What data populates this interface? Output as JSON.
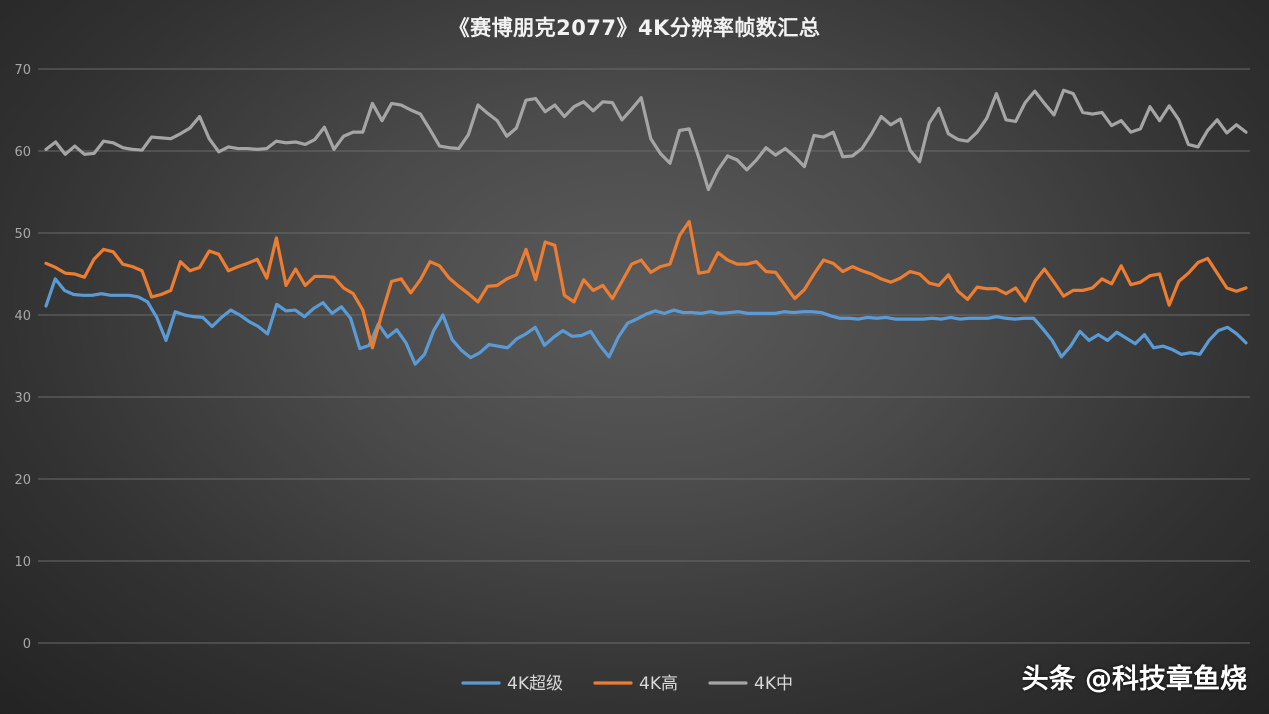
{
  "watermark": "头条 @科技章鱼烧",
  "chart_data": {
    "type": "line",
    "title": "《赛博朋克2077》4K分辨率帧数汇总",
    "xlabel": "",
    "ylabel": "",
    "ylim": [
      0,
      70
    ],
    "yticks": [
      0,
      10,
      20,
      30,
      40,
      50,
      60,
      70
    ],
    "grid": true,
    "legend_position": "bottom",
    "series": [
      {
        "name": "4K超级",
        "color": "#5b9bd5",
        "values": [
          41.1,
          44.4,
          43.0,
          42.5,
          42.4,
          42.4,
          42.6,
          42.4,
          42.4,
          42.4,
          42.2,
          41.6,
          39.7,
          36.9,
          40.4,
          40.0,
          39.8,
          39.7,
          38.6,
          39.7,
          40.6,
          40.0,
          39.2,
          38.6,
          37.7,
          41.3,
          40.5,
          40.6,
          39.8,
          40.8,
          41.5,
          40.2,
          41.0,
          39.6,
          35.9,
          36.3,
          38.9,
          37.3,
          38.2,
          36.6,
          34.0,
          35.2,
          38.1,
          40.0,
          37.0,
          35.7,
          34.8,
          35.4,
          36.4,
          36.2,
          36.0,
          37.1,
          37.7,
          38.5,
          36.3,
          37.3,
          38.1,
          37.4,
          37.5,
          38.0,
          36.3,
          34.9,
          37.3,
          39.0,
          39.5,
          40.1,
          40.5,
          40.2,
          40.6,
          40.3,
          40.3,
          40.2,
          40.4,
          40.2,
          40.3,
          40.4,
          40.2,
          40.2,
          40.2,
          40.2,
          40.4,
          40.3,
          40.4,
          40.4,
          40.3,
          39.9,
          39.6,
          39.6,
          39.5,
          39.7,
          39.6,
          39.7,
          39.5,
          39.5,
          39.5,
          39.5,
          39.6,
          39.5,
          39.7,
          39.5,
          39.6,
          39.6,
          39.6,
          39.8,
          39.6,
          39.5,
          39.6,
          39.6,
          38.3,
          36.9,
          34.9,
          36.2,
          38.0,
          36.9,
          37.6,
          36.9,
          37.9,
          37.2,
          36.5,
          37.6,
          36.0,
          36.2,
          35.8,
          35.2,
          35.4,
          35.2,
          36.9,
          38.1,
          38.5,
          37.7,
          36.6
        ]
      },
      {
        "name": "4K高",
        "color": "#ed7d31",
        "values": [
          46.3,
          45.8,
          45.1,
          45.0,
          44.6,
          46.8,
          48.0,
          47.7,
          46.2,
          45.9,
          45.4,
          42.2,
          42.5,
          43.0,
          46.5,
          45.4,
          45.8,
          47.8,
          47.4,
          45.4,
          45.9,
          46.3,
          46.8,
          44.5,
          49.4,
          43.6,
          45.6,
          43.6,
          44.7,
          44.7,
          44.6,
          43.3,
          42.6,
          40.6,
          36.0,
          40.2,
          44.1,
          44.4,
          42.7,
          44.3,
          46.5,
          46.0,
          44.5,
          43.5,
          42.6,
          41.6,
          43.5,
          43.6,
          44.4,
          44.9,
          48.0,
          44.3,
          48.9,
          48.5,
          42.4,
          41.6,
          44.3,
          43.0,
          43.6,
          42.0,
          44.1,
          46.2,
          46.7,
          45.2,
          45.9,
          46.2,
          49.7,
          51.4,
          45.1,
          45.3,
          47.6,
          46.7,
          46.2,
          46.2,
          46.5,
          45.3,
          45.2,
          43.6,
          42.0,
          43.1,
          45.0,
          46.7,
          46.3,
          45.3,
          45.9,
          45.4,
          45.0,
          44.4,
          44.0,
          44.5,
          45.3,
          45.0,
          43.9,
          43.6,
          44.9,
          42.9,
          41.9,
          43.4,
          43.2,
          43.2,
          42.6,
          43.3,
          41.7,
          44.1,
          45.6,
          44.0,
          42.3,
          43.0,
          43.0,
          43.3,
          44.4,
          43.8,
          46.0,
          43.7,
          44.0,
          44.8,
          45.0,
          41.2,
          44.1,
          45.1,
          46.4,
          46.9,
          45.1,
          43.3,
          42.9,
          43.3
        ]
      },
      {
        "name": "4K中",
        "color": "#a5a5a5",
        "values": [
          60.2,
          61.1,
          59.6,
          60.6,
          59.6,
          59.7,
          61.2,
          61.0,
          60.4,
          60.2,
          60.1,
          61.7,
          61.6,
          61.5,
          62.1,
          62.8,
          64.2,
          61.5,
          59.9,
          60.5,
          60.3,
          60.3,
          60.2,
          60.3,
          61.2,
          61.0,
          61.1,
          60.8,
          61.4,
          62.9,
          60.2,
          61.8,
          62.3,
          62.3,
          65.8,
          63.7,
          65.8,
          65.6,
          65.0,
          64.5,
          62.6,
          60.6,
          60.4,
          60.3,
          62.0,
          65.6,
          64.6,
          63.7,
          61.8,
          62.8,
          66.2,
          66.4,
          64.8,
          65.6,
          64.2,
          65.4,
          66.0,
          64.9,
          66.0,
          65.9,
          63.8,
          65.1,
          66.5,
          61.5,
          59.7,
          58.5,
          62.5,
          62.7,
          59.2,
          55.3,
          57.7,
          59.4,
          58.9,
          57.7,
          58.9,
          60.4,
          59.5,
          60.3,
          59.3,
          58.1,
          61.9,
          61.7,
          62.3,
          59.3,
          59.4,
          60.3,
          62.1,
          64.2,
          63.2,
          63.9,
          60.1,
          58.7,
          63.4,
          65.2,
          62.1,
          61.4,
          61.2,
          62.3,
          64.0,
          67.0,
          63.8,
          63.6,
          65.9,
          67.3,
          65.8,
          64.4,
          67.4,
          67.0,
          64.7,
          64.5,
          64.7,
          63.1,
          63.7,
          62.3,
          62.7,
          65.4,
          63.7,
          65.5,
          63.8,
          60.8,
          60.5,
          62.5,
          63.8,
          62.2,
          63.2,
          62.3
        ]
      }
    ]
  }
}
